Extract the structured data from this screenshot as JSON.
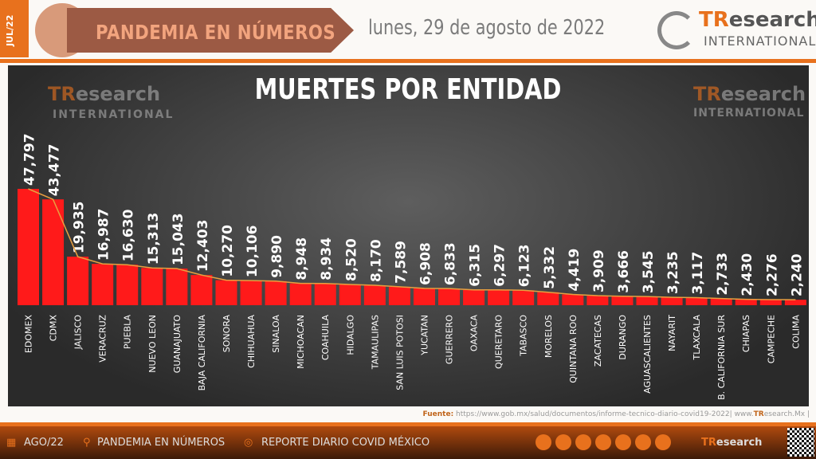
{
  "header": {
    "side_label": "JUL/22",
    "banner_title": "PANDEMIA EN NÚMEROS",
    "date": "lunes, 29 de agosto de 2022",
    "logo_tr": "TR",
    "logo_rest": "esearch",
    "logo_sub": "INTERNATIONAL"
  },
  "chart_data": {
    "type": "bar",
    "title": "MUERTES POR ENTIDAD",
    "categories": [
      "EDOMEX",
      "CDMX",
      "JALISCO",
      "VERACRUZ",
      "PUEBLA",
      "NUEVO LEON",
      "GUANAJUATO",
      "BAJA CALIFORNIA",
      "SONORA",
      "CHIHUAHUA",
      "SINALOA",
      "MICHOACAN",
      "COAHUILA",
      "HIDALGO",
      "TAMAULIPAS",
      "SAN LUIS POTOSI",
      "YUCATAN",
      "GUERRERO",
      "OAXACA",
      "QUERETARO",
      "TABASCO",
      "MORELOS",
      "QUINTANA ROO",
      "ZACATECAS",
      "DURANGO",
      "AGUASCALIENTES",
      "NAYARIT",
      "TLAXCALA",
      "B. CALIFORNIA SUR",
      "CHIAPAS",
      "CAMPECHE",
      "COLIMA"
    ],
    "values": [
      47797,
      43477,
      19935,
      16987,
      16630,
      15313,
      15043,
      12403,
      10270,
      10106,
      9890,
      8948,
      8934,
      8520,
      8170,
      7589,
      6908,
      6833,
      6315,
      6297,
      6123,
      5332,
      4419,
      3909,
      3666,
      3545,
      3235,
      3117,
      2733,
      2430,
      2276,
      2240
    ],
    "labels": [
      "47,797",
      "43,477",
      "19,935",
      "16,987",
      "16,630",
      "15,313",
      "15,043",
      "12,403",
      "10,270",
      "10,106",
      "9,890",
      "8,948",
      "8,934",
      "8,520",
      "8,170",
      "7,589",
      "6,908",
      "6,833",
      "6,315",
      "6,297",
      "6,123",
      "5,332",
      "4,419",
      "3,909",
      "3,666",
      "3,545",
      "3,235",
      "3,117",
      "2,733",
      "2,430",
      "2,276",
      "2,240"
    ],
    "bar_color": "#ff1a1a",
    "trend_color": "#e8a040",
    "ylim": [
      0,
      50000
    ]
  },
  "source": {
    "label": "Fuente:",
    "text": " https://www.gob.mx/salud/documentos/informe-tecnico-diario-covid19-2022| www.",
    "tr": "TR",
    "rest": "esearch.Mx |"
  },
  "footer": {
    "date": "AGO/22",
    "section": "PANDEMIA EN NÚMEROS",
    "report": "REPORTE DIARIO COVID MÉXICO"
  }
}
